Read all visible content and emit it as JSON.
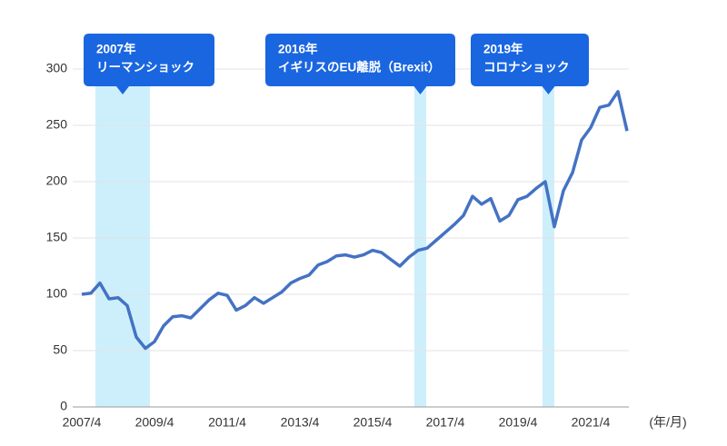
{
  "chart_data": {
    "type": "line",
    "x_unit_label": "(年/月)",
    "x": [
      2007.25,
      2007.5,
      2007.75,
      2008,
      2008.25,
      2008.5,
      2008.75,
      2009,
      2009.25,
      2009.5,
      2009.75,
      2010,
      2010.25,
      2010.5,
      2010.75,
      2011,
      2011.25,
      2011.5,
      2011.75,
      2012,
      2012.25,
      2012.5,
      2012.75,
      2013,
      2013.25,
      2013.5,
      2013.75,
      2014,
      2014.25,
      2014.5,
      2014.75,
      2015,
      2015.25,
      2015.5,
      2015.75,
      2016,
      2016.25,
      2016.5,
      2016.75,
      2017,
      2017.25,
      2017.5,
      2017.75,
      2018,
      2018.25,
      2018.5,
      2018.75,
      2019,
      2019.25,
      2019.5,
      2019.75,
      2020,
      2020.25,
      2020.5,
      2020.75,
      2021,
      2021.25,
      2021.5,
      2021.75,
      2022,
      2022.25
    ],
    "series": [
      {
        "color": "#4472c4",
        "values": [
          100,
          101,
          110,
          96,
          97,
          90,
          62,
          52,
          58,
          72,
          80,
          81,
          79,
          87,
          95,
          101,
          99,
          86,
          90,
          97,
          92,
          97,
          102,
          110,
          114,
          117,
          126,
          129,
          134,
          135,
          133,
          135,
          139,
          137,
          131,
          125,
          133,
          139,
          141,
          148,
          155,
          162,
          170,
          187,
          180,
          185,
          165,
          170,
          184,
          187,
          194,
          200,
          160,
          192,
          208,
          237,
          248,
          266,
          268,
          280,
          245
        ]
      }
    ],
    "xlim": [
      2007.25,
      2022.3
    ],
    "xticks": [
      {
        "value": 2007.25,
        "label": "2007/4"
      },
      {
        "value": 2009.25,
        "label": "2009/4"
      },
      {
        "value": 2011.25,
        "label": "2011/4"
      },
      {
        "value": 2013.25,
        "label": "2013/4"
      },
      {
        "value": 2015.25,
        "label": "2015/4"
      },
      {
        "value": 2017.25,
        "label": "2017/4"
      },
      {
        "value": 2019.25,
        "label": "2019/4"
      },
      {
        "value": 2021.25,
        "label": "2021/4"
      }
    ],
    "ylim": [
      0,
      300
    ],
    "yticks": [
      0,
      50,
      100,
      150,
      200,
      250,
      300
    ],
    "grid": true,
    "highlights": [
      {
        "start": 2007.625,
        "end": 2009.125,
        "color": "#cdeffb",
        "label": [
          "2007年",
          "リーマンショック"
        ]
      },
      {
        "start": 2016.4,
        "end": 2016.725,
        "color": "#cdeffb",
        "label": [
          "2016年",
          "イギリスのEU離脱（Brexit）"
        ]
      },
      {
        "start": 2019.925,
        "end": 2020.25,
        "color": "#cdeffb",
        "label": [
          "2019年",
          "コロナショック"
        ]
      }
    ]
  }
}
